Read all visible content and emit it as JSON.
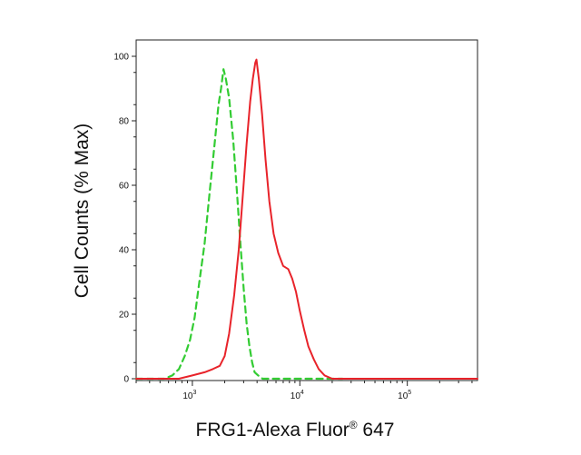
{
  "chart_data": {
    "type": "line",
    "title": "",
    "xlabel": "FRG1-Alexa Fluor",
    "xlabel_mark": "®",
    "xlabel_suffix": " 647",
    "ylabel": "Cell Counts (% Max)",
    "x_scale": "log",
    "xlim": [
      300,
      450000
    ],
    "ylim": [
      0,
      100
    ],
    "grid": false,
    "legend": "none",
    "y_ticks": [
      {
        "value": 0,
        "label": "0"
      },
      {
        "value": 20,
        "label": "20"
      },
      {
        "value": 40,
        "label": "40"
      },
      {
        "value": 60,
        "label": "60"
      },
      {
        "value": 80,
        "label": "80"
      },
      {
        "value": 100,
        "label": "100"
      }
    ],
    "x_ticks": [
      {
        "value": 1000,
        "base": "10",
        "exp": "3"
      },
      {
        "value": 10000,
        "base": "10",
        "exp": "4"
      },
      {
        "value": 100000,
        "base": "10",
        "exp": "5"
      }
    ],
    "series": [
      {
        "color": "#33cc33",
        "style": "dashed",
        "points": [
          [
            300,
            0
          ],
          [
            550,
            0
          ],
          [
            650,
            1
          ],
          [
            750,
            3
          ],
          [
            850,
            7
          ],
          [
            950,
            12
          ],
          [
            1050,
            19
          ],
          [
            1150,
            29
          ],
          [
            1300,
            42
          ],
          [
            1450,
            58
          ],
          [
            1600,
            72
          ],
          [
            1750,
            85
          ],
          [
            1850,
            90
          ],
          [
            1950,
            96
          ],
          [
            2050,
            93
          ],
          [
            2200,
            87
          ],
          [
            2400,
            74
          ],
          [
            2600,
            58
          ],
          [
            2800,
            42
          ],
          [
            3000,
            28
          ],
          [
            3200,
            17
          ],
          [
            3400,
            10
          ],
          [
            3600,
            5
          ],
          [
            3800,
            2
          ],
          [
            4100,
            1
          ],
          [
            4500,
            0
          ],
          [
            25000,
            0
          ]
        ]
      },
      {
        "color": "#e8232a",
        "style": "solid",
        "points": [
          [
            300,
            0
          ],
          [
            750,
            0
          ],
          [
            1000,
            1
          ],
          [
            1300,
            2
          ],
          [
            1550,
            3
          ],
          [
            1800,
            4
          ],
          [
            2000,
            7
          ],
          [
            2200,
            14
          ],
          [
            2450,
            26
          ],
          [
            2700,
            40
          ],
          [
            2950,
            57
          ],
          [
            3200,
            73
          ],
          [
            3450,
            86
          ],
          [
            3650,
            93
          ],
          [
            3850,
            98
          ],
          [
            3950,
            99
          ],
          [
            4150,
            93
          ],
          [
            4450,
            82
          ],
          [
            4800,
            68
          ],
          [
            5200,
            55
          ],
          [
            5700,
            45
          ],
          [
            6300,
            39
          ],
          [
            7000,
            35
          ],
          [
            7800,
            34
          ],
          [
            8500,
            31
          ],
          [
            9200,
            27
          ],
          [
            10000,
            21
          ],
          [
            11000,
            15
          ],
          [
            12000,
            10
          ],
          [
            13500,
            6
          ],
          [
            15000,
            3
          ],
          [
            17000,
            1
          ],
          [
            20000,
            0
          ],
          [
            450000,
            0
          ]
        ]
      }
    ]
  }
}
